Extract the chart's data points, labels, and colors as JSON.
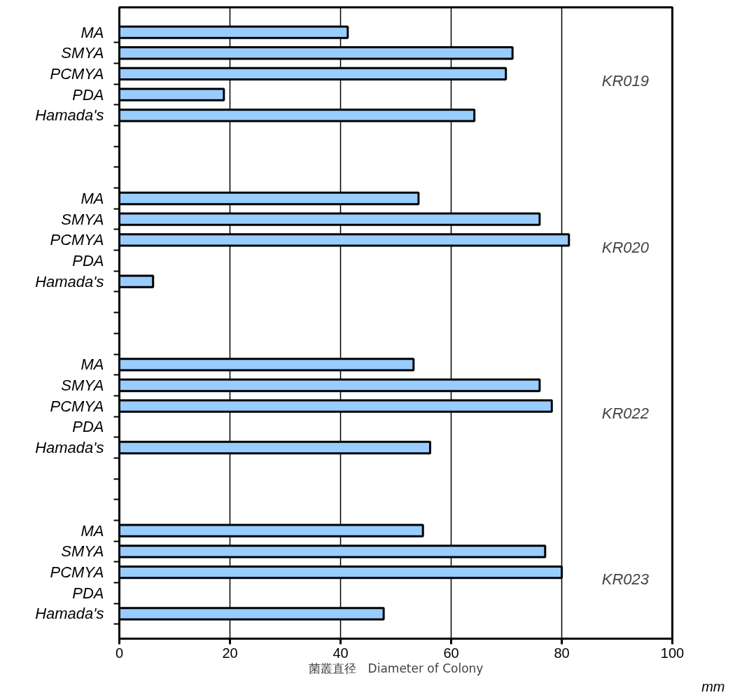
{
  "chart_data": {
    "type": "bar",
    "orientation": "horizontal",
    "xlabel": "菌叢直径　Diameter of Colony",
    "categories": [
      "MA",
      "SMYA",
      "PCMYA",
      "PDA",
      "Hamada's",
      null,
      null,
      null,
      "MA",
      "SMYA",
      "PCMYA",
      "PDA",
      "Hamada's",
      null,
      null,
      null,
      "MA",
      "SMYA",
      "PCMYA",
      "PDA",
      "Hamada's",
      null,
      null,
      null,
      "MA",
      "SMYA",
      "PCMYA",
      "PDA",
      "Hamada's"
    ],
    "values": [
      41.3,
      71.1,
      69.9,
      18.9,
      64.2,
      null,
      null,
      null,
      54.1,
      76,
      81.3,
      null,
      6.1,
      null,
      null,
      null,
      53.2,
      76,
      78.2,
      null,
      56.2,
      null,
      null,
      null,
      54.9,
      77,
      80,
      null,
      47.8
    ],
    "color": "#99ccff",
    "xlim": [
      0,
      100
    ],
    "xticks": [
      0,
      20,
      40,
      60,
      80,
      100
    ],
    "grid": "x",
    "annotations": [
      "KR019",
      "KR020",
      "KR022",
      "KR023",
      "mm"
    ]
  }
}
